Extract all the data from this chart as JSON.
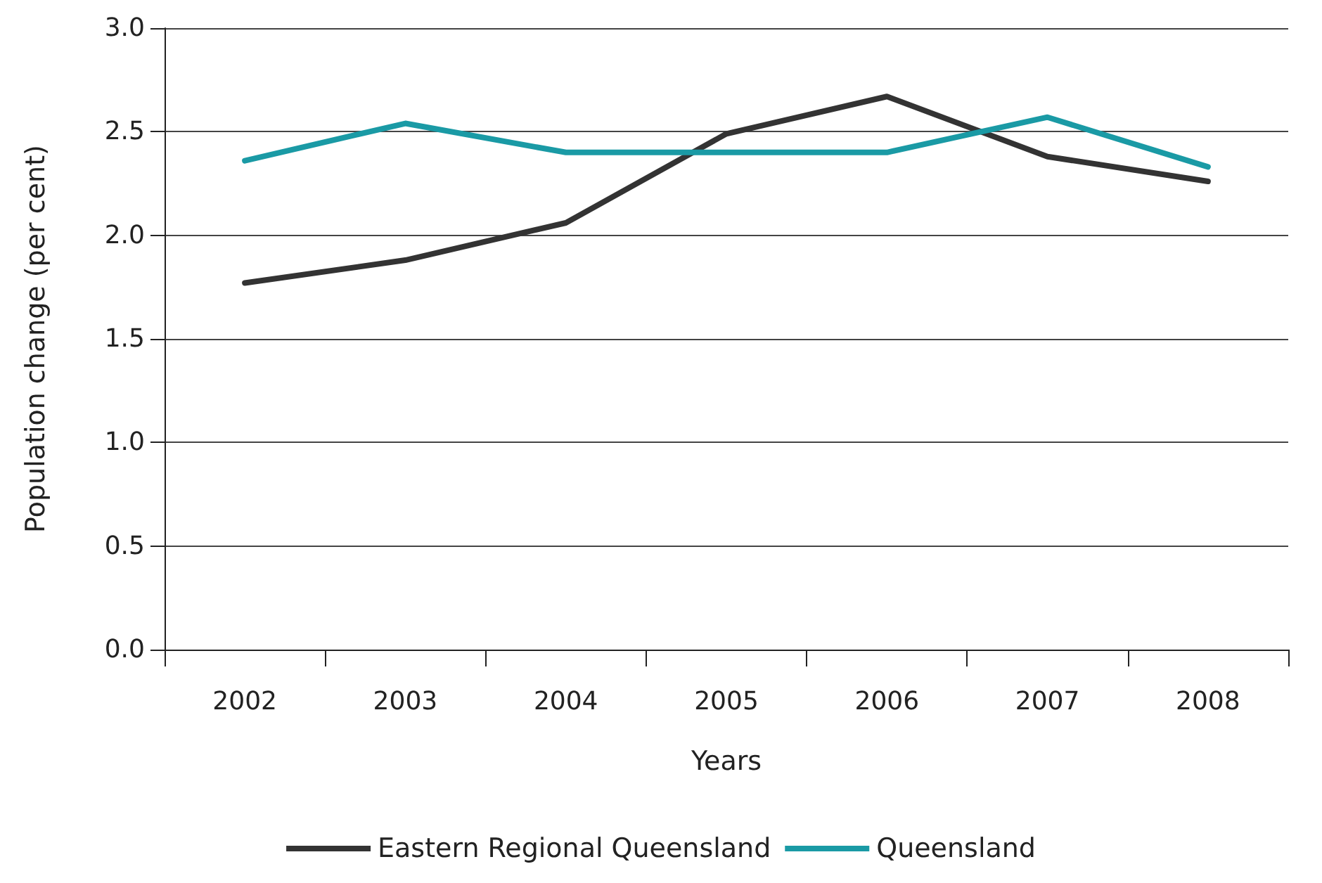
{
  "chart_data": {
    "type": "line",
    "xlabel": "Years",
    "ylabel": "Population change (per cent)",
    "categories": [
      "2002",
      "2003",
      "2004",
      "2005",
      "2006",
      "2007",
      "2008"
    ],
    "series": [
      {
        "name": "Eastern Regional Queensland",
        "color": "#333333",
        "values": [
          1.77,
          1.88,
          2.06,
          2.49,
          2.67,
          2.38,
          2.26
        ]
      },
      {
        "name": "Queensland",
        "color": "#1a9aa5",
        "values": [
          2.36,
          2.54,
          2.4,
          2.4,
          2.4,
          2.57,
          2.33
        ]
      }
    ],
    "ylim": [
      0,
      3
    ],
    "yticks": [
      {
        "value": 0,
        "label": "0.0"
      },
      {
        "value": 0.5,
        "label": "0.5"
      },
      {
        "value": 1,
        "label": "1.0"
      },
      {
        "value": 1.5,
        "label": "1.5"
      },
      {
        "value": 2,
        "label": "2.0"
      },
      {
        "value": 2.5,
        "label": "2.5"
      },
      {
        "value": 3,
        "label": "3.0"
      }
    ],
    "grid": "y",
    "legend": "bottom",
    "marker": "none",
    "line_style": "solid"
  }
}
